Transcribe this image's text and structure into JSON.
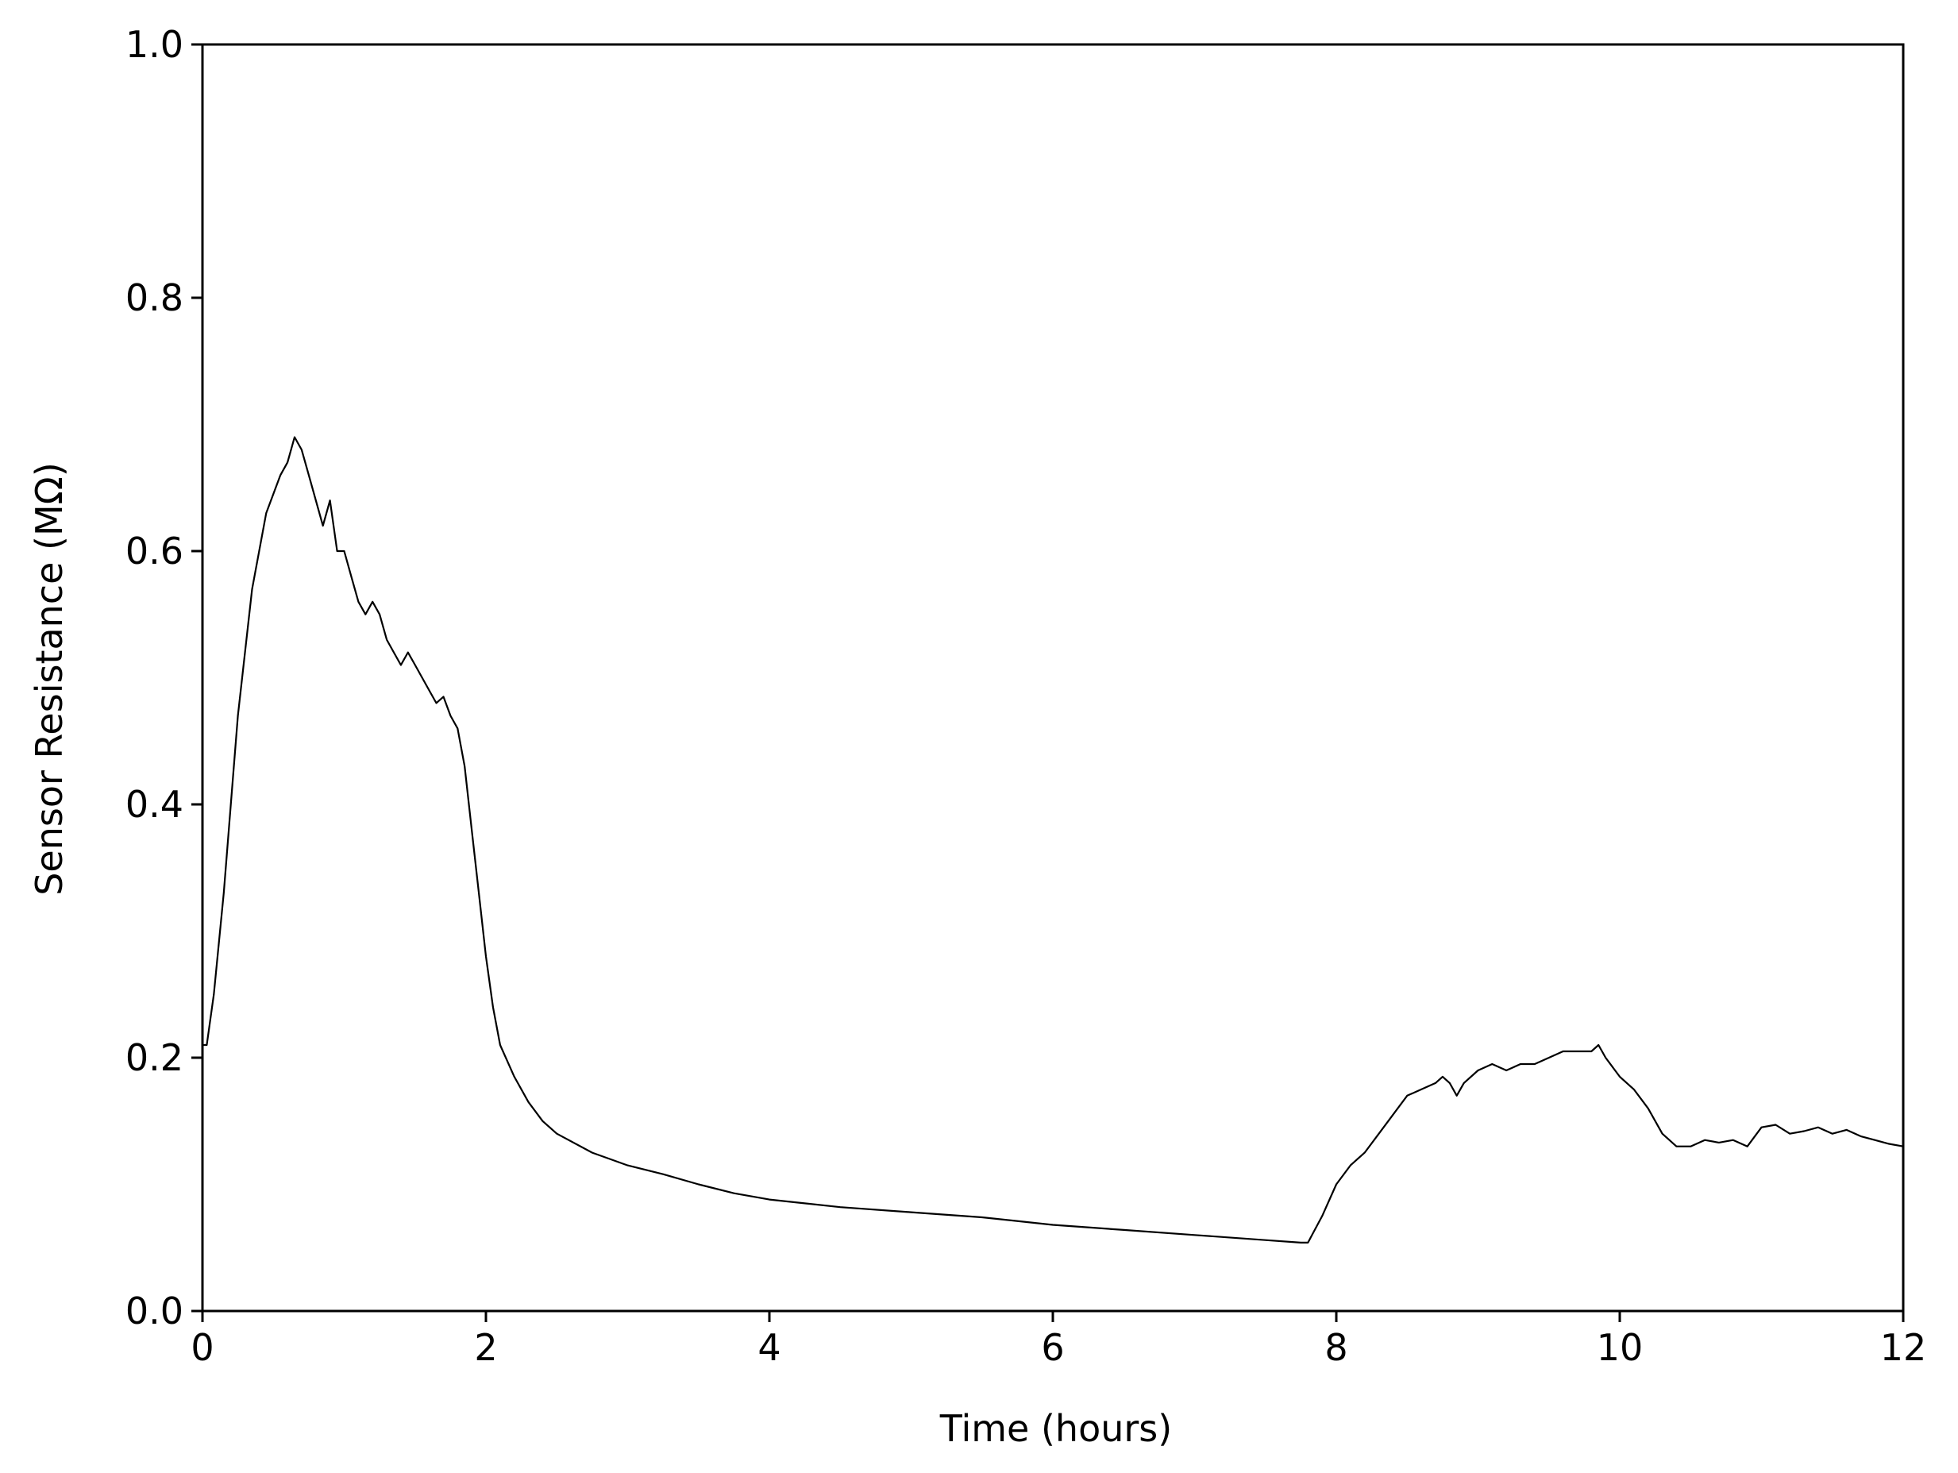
{
  "chart_data": {
    "type": "line",
    "title": "",
    "xlabel": "Time (hours)",
    "ylabel": "Sensor Resistance (MΩ)",
    "xlim": [
      0,
      12
    ],
    "ylim": [
      0.0,
      1.0
    ],
    "xticks": [
      0,
      2,
      4,
      6,
      8,
      10,
      12
    ],
    "xtick_labels": [
      "0",
      "2",
      "4",
      "6",
      "8",
      "10",
      "12"
    ],
    "yticks": [
      0.0,
      0.2,
      0.4,
      0.6,
      0.8,
      1.0
    ],
    "ytick_labels": [
      "0.0",
      "0.2",
      "0.4",
      "0.6",
      "0.8",
      "1.0"
    ],
    "grid": false,
    "legend": "none",
    "line_color": "#000000",
    "series": [
      {
        "x": [
          0.0,
          0.03,
          0.08,
          0.15,
          0.25,
          0.35,
          0.45,
          0.55,
          0.6,
          0.65,
          0.7,
          0.75,
          0.8,
          0.85,
          0.9,
          0.95,
          1.0,
          1.05,
          1.1,
          1.15,
          1.2,
          1.25,
          1.3,
          1.35,
          1.4,
          1.45,
          1.5,
          1.55,
          1.6,
          1.65,
          1.7,
          1.75,
          1.8,
          1.85,
          1.9,
          1.95,
          2.0,
          2.05,
          2.1,
          2.2,
          2.3,
          2.4,
          2.5,
          2.75,
          3.0,
          3.25,
          3.5,
          3.75,
          4.0,
          4.5,
          5.0,
          5.5,
          6.0,
          6.5,
          7.0,
          7.5,
          7.75,
          7.8,
          7.9,
          8.0,
          8.1,
          8.2,
          8.3,
          8.4,
          8.5,
          8.6,
          8.7,
          8.75,
          8.8,
          8.85,
          8.9,
          9.0,
          9.1,
          9.2,
          9.3,
          9.4,
          9.5,
          9.6,
          9.7,
          9.8,
          9.85,
          9.9,
          10.0,
          10.1,
          10.2,
          10.3,
          10.4,
          10.5,
          10.6,
          10.7,
          10.8,
          10.9,
          11.0,
          11.1,
          11.2,
          11.3,
          11.4,
          11.5,
          11.6,
          11.7,
          11.8,
          11.9,
          12.0
        ],
        "y": [
          0.21,
          0.21,
          0.25,
          0.33,
          0.47,
          0.57,
          0.63,
          0.66,
          0.67,
          0.69,
          0.68,
          0.66,
          0.64,
          0.62,
          0.64,
          0.6,
          0.6,
          0.58,
          0.56,
          0.55,
          0.56,
          0.55,
          0.53,
          0.52,
          0.51,
          0.52,
          0.51,
          0.5,
          0.49,
          0.48,
          0.485,
          0.47,
          0.46,
          0.43,
          0.38,
          0.33,
          0.28,
          0.24,
          0.21,
          0.185,
          0.165,
          0.15,
          0.14,
          0.125,
          0.115,
          0.108,
          0.1,
          0.093,
          0.088,
          0.082,
          0.078,
          0.074,
          0.068,
          0.064,
          0.06,
          0.056,
          0.054,
          0.054,
          0.075,
          0.1,
          0.115,
          0.125,
          0.14,
          0.155,
          0.17,
          0.175,
          0.18,
          0.185,
          0.18,
          0.17,
          0.18,
          0.19,
          0.195,
          0.19,
          0.195,
          0.195,
          0.2,
          0.205,
          0.205,
          0.205,
          0.21,
          0.2,
          0.185,
          0.175,
          0.16,
          0.14,
          0.13,
          0.13,
          0.135,
          0.133,
          0.135,
          0.13,
          0.145,
          0.147,
          0.14,
          0.142,
          0.145,
          0.14,
          0.143,
          0.138,
          0.135,
          0.132,
          0.13
        ]
      }
    ]
  }
}
